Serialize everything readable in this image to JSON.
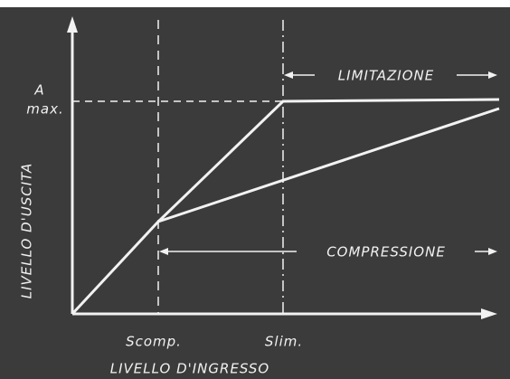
{
  "y_axis_label": "LIVELLO D'USCITA",
  "x_axis_label": "LIVELLO D'INGRESSO",
  "y_marker": {
    "line1": "A",
    "line2": "max."
  },
  "x_markers": [
    "Scomp.",
    "Slim."
  ],
  "regions": {
    "limitation": "LIMITAZIONE",
    "compression": "COMPRESSIONE"
  }
}
